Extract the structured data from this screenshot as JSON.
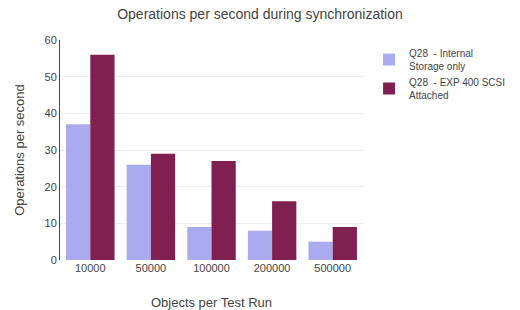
{
  "chart_data": {
    "type": "bar",
    "title": "Operations per second during synchronization",
    "x_label": "Objects per Test Run",
    "y_label": "Operations per second",
    "categories": [
      "10000",
      "50000",
      "100000",
      "200000",
      "500000"
    ],
    "series": [
      {
        "name": "Q28  - Internal\nStorage only",
        "color": "#aaaaee",
        "values": [
          37,
          26,
          9,
          8,
          5
        ]
      },
      {
        "name": "Q28  - EXP 400 SCSI\nAttached",
        "color": "#802050",
        "values": [
          56,
          29,
          27,
          16,
          9
        ]
      }
    ],
    "ylim": [
      0,
      60
    ],
    "yticks": [
      0,
      10,
      20,
      30,
      40,
      50,
      60
    ],
    "grid": true,
    "legend": "upper right"
  }
}
